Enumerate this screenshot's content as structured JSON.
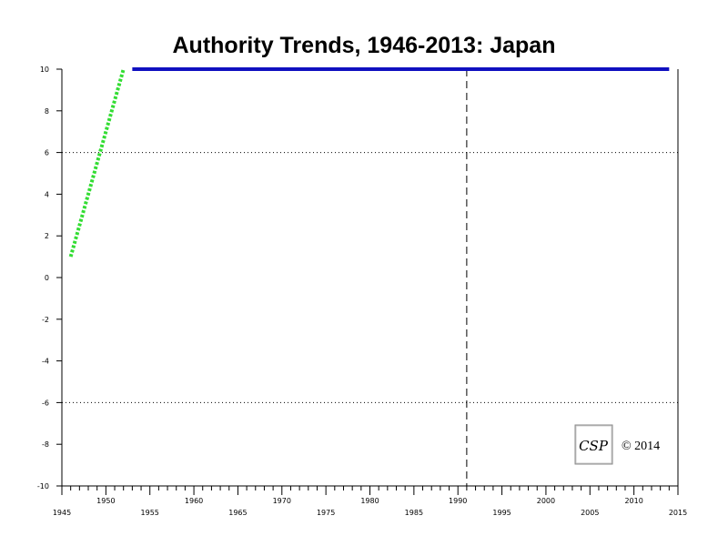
{
  "chart_data": {
    "type": "line",
    "title": "Authority Trends, 1946-2013: Japan",
    "xlabel": "",
    "ylabel": "",
    "xlim": [
      1945,
      2015
    ],
    "ylim": [
      -10,
      10
    ],
    "x_ticks": [
      1945,
      1950,
      1955,
      1960,
      1965,
      1970,
      1975,
      1980,
      1985,
      1990,
      1995,
      2000,
      2005,
      2010,
      2015
    ],
    "y_ticks": [
      10,
      8,
      6,
      4,
      2,
      0,
      -2,
      -4,
      -6,
      -8,
      -10
    ],
    "reference_lines": {
      "horizontal_dotted": [
        6,
        -6
      ],
      "vertical_dashed": [
        1991
      ]
    },
    "series": [
      {
        "style": "dotted",
        "color": "#33dd33",
        "points": [
          [
            1946,
            1
          ],
          [
            1947,
            2.5
          ],
          [
            1948,
            4
          ],
          [
            1949,
            5.5
          ],
          [
            1950,
            7
          ],
          [
            1951,
            8.5
          ],
          [
            1952,
            10
          ]
        ]
      },
      {
        "style": "solid",
        "color": "#1010c0",
        "points": [
          [
            1953,
            10
          ],
          [
            2014,
            10
          ]
        ]
      }
    ],
    "annotations": {
      "logo": "CSP",
      "copyright": "© 2014"
    }
  }
}
